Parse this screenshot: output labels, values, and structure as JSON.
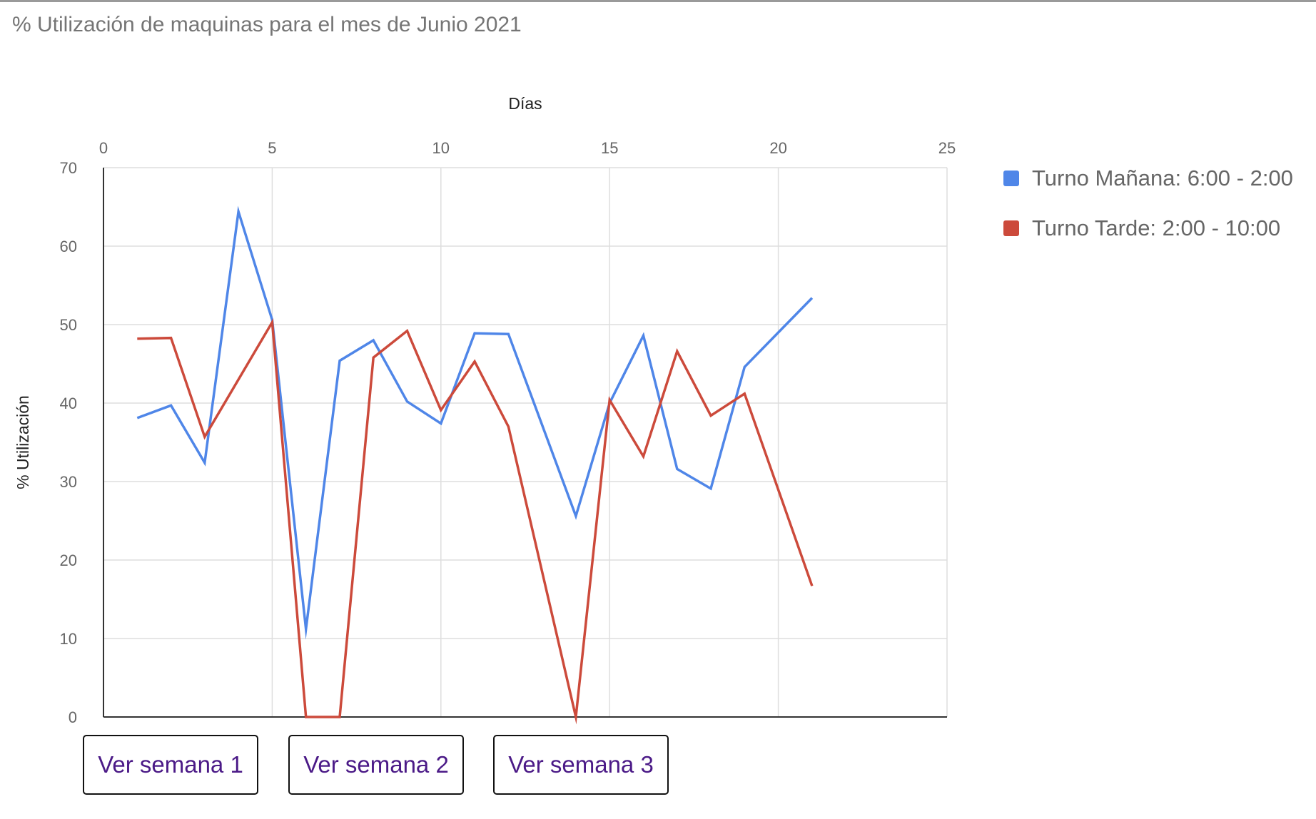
{
  "chart_data": {
    "type": "line",
    "title": "% Utilización de maquinas para el mes de Junio 2021",
    "xlabel": "Días",
    "ylabel": "% Utilización",
    "xlim": [
      0,
      25
    ],
    "ylim": [
      0,
      70
    ],
    "x_ticks": [
      "0",
      "5",
      "10",
      "15",
      "20",
      "25"
    ],
    "y_ticks": [
      "0",
      "10",
      "20",
      "30",
      "40",
      "50",
      "60",
      "70"
    ],
    "x_axis_position": "top",
    "grid": true,
    "legend_position": "right",
    "series": [
      {
        "name": "Turno Mañana: 6:00 - 2:00",
        "color": "#4f86e8",
        "x": [
          1,
          2,
          3,
          4,
          5,
          6,
          7,
          8,
          9,
          10,
          11,
          12,
          14,
          15,
          16,
          17,
          18,
          19,
          21
        ],
        "y": [
          38.1,
          39.7,
          32.4,
          64.4,
          50.6,
          11.2,
          45.4,
          48.0,
          40.2,
          37.4,
          48.9,
          48.8,
          25.6,
          40.0,
          48.6,
          31.6,
          29.1,
          44.6,
          53.4
        ]
      },
      {
        "name": "Turno Tarde: 2:00 - 10:00",
        "color": "#cc4a3b",
        "x": [
          1,
          2,
          3,
          5,
          6,
          7,
          8,
          9,
          10,
          11,
          12,
          14,
          15,
          16,
          17,
          18,
          19,
          21
        ],
        "y": [
          48.2,
          48.3,
          35.7,
          50.3,
          0,
          0,
          45.8,
          49.2,
          39.1,
          45.3,
          37.0,
          0,
          40.4,
          33.2,
          46.6,
          38.4,
          41.2,
          16.7
        ]
      }
    ]
  },
  "buttons": {
    "week1": "Ver semana 1",
    "week2": "Ver semana 2",
    "week3": "Ver semana 3"
  }
}
